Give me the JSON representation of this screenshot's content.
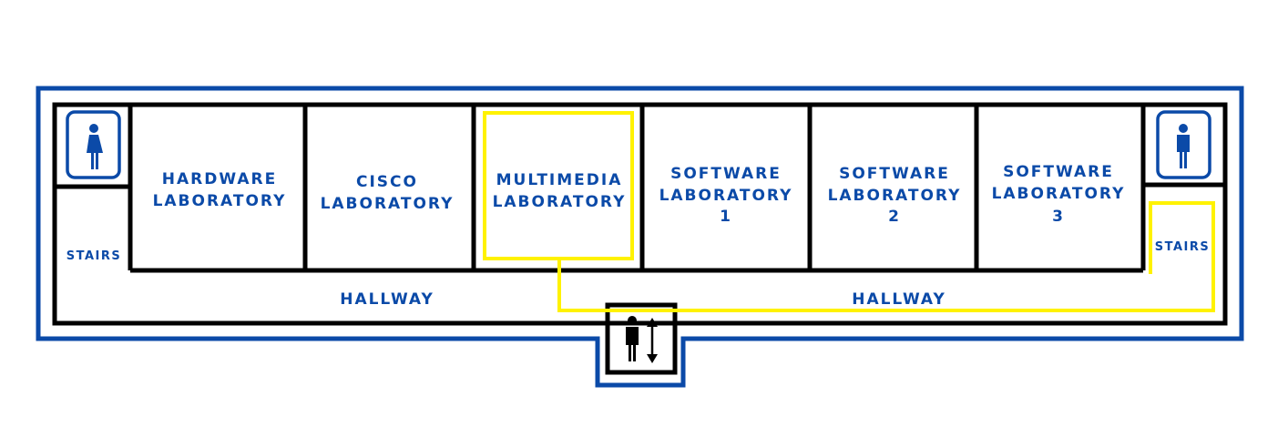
{
  "colors": {
    "brand_blue": "#0b4aa8",
    "wall": "#000000",
    "route_highlight": "#fff200"
  },
  "rooms": {
    "hardware": {
      "line1": "HARDWARE",
      "line2": "LABORATORY"
    },
    "cisco": {
      "line1": "CISCO",
      "line2": "LABORATORY"
    },
    "multimedia": {
      "line1": "MULTIMEDIA",
      "line2": "LABORATORY",
      "highlighted": true
    },
    "software1": {
      "line1": "SOFTWARE",
      "line2": "LABORATORY",
      "line3": "1"
    },
    "software2": {
      "line1": "SOFTWARE",
      "line2": "LABORATORY",
      "line3": "2"
    },
    "software3": {
      "line1": "SOFTWARE",
      "line2": "LABORATORY",
      "line3": "3"
    }
  },
  "stairs": {
    "left": "STAIRS",
    "right": "STAIRS"
  },
  "hallway": {
    "left": "HALLWAY",
    "right": "HALLWAY"
  },
  "icons": {
    "restroom_left": "female-restroom-icon",
    "restroom_right": "male-restroom-icon",
    "elevator": "elevator-icon"
  }
}
